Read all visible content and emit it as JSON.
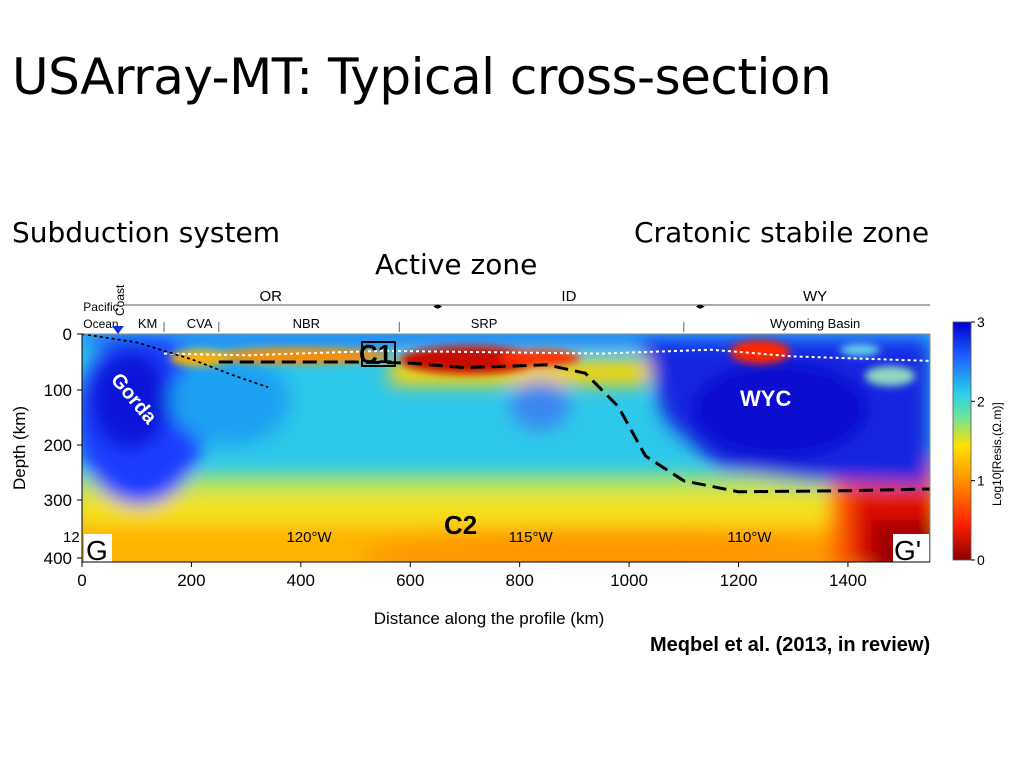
{
  "slide": {
    "title": "USArray-MT: Typical cross-section",
    "subtitles": {
      "left": "Subduction system",
      "middle": "Active zone",
      "right": "Cratonic stabile zone"
    },
    "citation": "Meqbel et al. (2013, in review)"
  },
  "chart_data": {
    "type": "heatmap",
    "xlabel": "Distance along the profile (km)",
    "ylabel": "Depth (km)",
    "xlim": [
      0,
      1550
    ],
    "x_ticks": [
      0,
      200,
      400,
      600,
      800,
      1000,
      1200,
      1400
    ],
    "y_ticks": [
      0,
      100,
      200,
      300,
      400
    ],
    "y_scale": "stretched near surface",
    "colorbar": {
      "label": "Log10[Resis.(Ω.m)]",
      "range": [
        0,
        3
      ],
      "ticks": [
        0,
        1,
        2,
        3
      ],
      "colors": [
        "#8b0000",
        "#ff1f00",
        "#ffd400",
        "#29d0e8",
        "#0000ff"
      ]
    },
    "states": [
      {
        "label": "OR",
        "x_start": 0,
        "x_end": 650
      },
      {
        "label": "ID",
        "x_start": 650,
        "x_end": 1130
      },
      {
        "label": "WY",
        "x_start": 1130,
        "x_end": 1550
      }
    ],
    "provinces": [
      {
        "label": "Pacific Ocean",
        "x": 20
      },
      {
        "label": "KM",
        "x": 120
      },
      {
        "label": "CVA",
        "x": 215
      },
      {
        "label": "NBR",
        "x": 410
      },
      {
        "label": "SRP",
        "x": 735
      },
      {
        "label": "Wyoming Basin",
        "x": 1340
      }
    ],
    "coast": {
      "label": "Coast",
      "x": 65
    },
    "longitudes": [
      {
        "label": "12",
        "x": -10
      },
      {
        "label": "120°W",
        "x": 415
      },
      {
        "label": "115°W",
        "x": 820
      },
      {
        "label": "110°W",
        "x": 1220
      }
    ],
    "section_ends": {
      "start": "G",
      "end": "G'"
    },
    "annotations": [
      {
        "label": "C1",
        "x": 550,
        "depth": 30
      },
      {
        "label": "C2",
        "x": 700,
        "depth": 340
      },
      {
        "label": "Gorda",
        "x": 120,
        "depth": 120
      },
      {
        "label": "WYC",
        "x": 1250,
        "depth": 120
      }
    ],
    "lab_boundary": [
      {
        "x": 250,
        "depth": 50
      },
      {
        "x": 500,
        "depth": 50
      },
      {
        "x": 600,
        "depth": 52
      },
      {
        "x": 700,
        "depth": 60
      },
      {
        "x": 850,
        "depth": 55
      },
      {
        "x": 920,
        "depth": 70
      },
      {
        "x": 980,
        "depth": 130
      },
      {
        "x": 1030,
        "depth": 220
      },
      {
        "x": 1100,
        "depth": 265
      },
      {
        "x": 1200,
        "depth": 285
      },
      {
        "x": 1400,
        "depth": 283
      },
      {
        "x": 1550,
        "depth": 280
      }
    ],
    "slab_line": [
      {
        "x": 0,
        "depth": 0
      },
      {
        "x": 100,
        "depth": 15
      },
      {
        "x": 200,
        "depth": 45
      },
      {
        "x": 280,
        "depth": 75
      },
      {
        "x": 340,
        "depth": 95
      }
    ],
    "moho_line": [
      {
        "x": 150,
        "depth": 35
      },
      {
        "x": 300,
        "depth": 38
      },
      {
        "x": 550,
        "depth": 30
      },
      {
        "x": 700,
        "depth": 32
      },
      {
        "x": 950,
        "depth": 35
      },
      {
        "x": 1150,
        "depth": 28
      },
      {
        "x": 1300,
        "depth": 40
      },
      {
        "x": 1550,
        "depth": 48
      }
    ]
  }
}
